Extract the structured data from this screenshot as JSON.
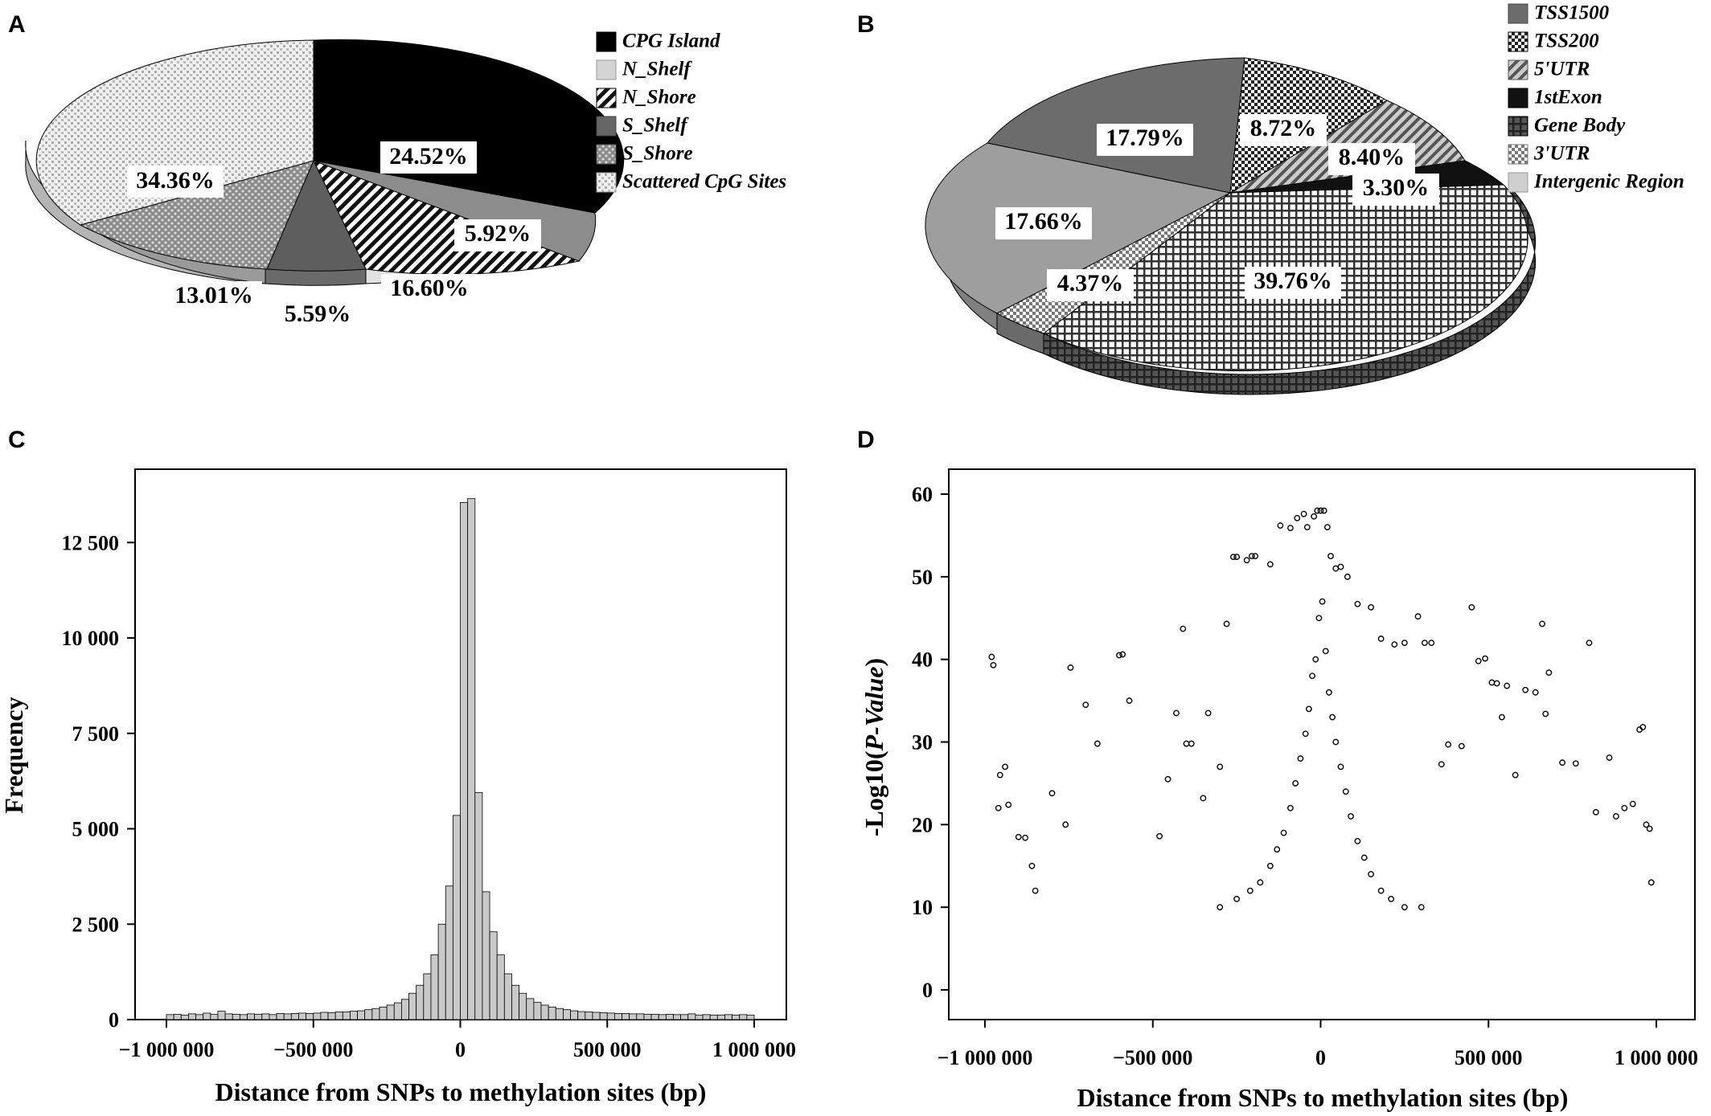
{
  "panels": {
    "a": {
      "letter": "A"
    },
    "b": {
      "letter": "B"
    },
    "c": {
      "letter": "C"
    },
    "d": {
      "letter": "D"
    }
  },
  "chart_data": [
    {
      "type": "pie",
      "slices": [
        {
          "name": "CPG Island",
          "value": 24.52,
          "label": "24.52%",
          "pattern": "solid-black"
        },
        {
          "name": "N_Shelf",
          "value": 0.0,
          "label": "",
          "pattern": "light-gray"
        },
        {
          "name": "N_Shore",
          "value": 16.6,
          "label": "16.60%",
          "pattern": "diagonal-stripes"
        },
        {
          "name": "S_Shelf",
          "value": 5.59,
          "label": "5.59%",
          "pattern": "dark-gray"
        },
        {
          "name": "S_Shore",
          "value": 13.01,
          "label": "13.01%",
          "pattern": "crosshatch"
        },
        {
          "name": "Scattered CpG Sites",
          "value": 34.36,
          "label": "34.36%",
          "pattern": "light-grid"
        }
      ],
      "extra_slice": {
        "value": 5.92,
        "label": "5.92%",
        "pattern": "medium-gray"
      },
      "legend": [
        "CPG Island",
        "N_Shelf",
        "N_Shore",
        "S_Shelf",
        "S_Shore",
        "Scattered CpG Sites"
      ],
      "legend_position": "top-right"
    },
    {
      "type": "pie",
      "slices": [
        {
          "name": "TSS1500",
          "value": 17.79,
          "label": "17.79%",
          "pattern": "dark-gray"
        },
        {
          "name": "TSS200",
          "value": 8.72,
          "label": "8.72%",
          "pattern": "checker"
        },
        {
          "name": "5'UTR",
          "value": 8.4,
          "label": "8.40%",
          "pattern": "diagonal-stripes"
        },
        {
          "name": "1stExon",
          "value": 3.3,
          "label": "3.30%",
          "pattern": "solid-black"
        },
        {
          "name": "Gene Body",
          "value": 39.76,
          "label": "39.76%",
          "pattern": "grid"
        },
        {
          "name": "3'UTR",
          "value": 4.37,
          "label": "4.37%",
          "pattern": "checker-light"
        },
        {
          "name": "Intergenic Region",
          "value": 17.66,
          "label": "17.66%",
          "pattern": "light-gray"
        }
      ],
      "legend": [
        "TSS1500",
        "TSS200",
        "5'UTR",
        "1stExon",
        "Gene Body",
        "3'UTR",
        "Intergenic Region"
      ],
      "legend_position": "top-right"
    },
    {
      "type": "bar",
      "xlabel": "Distance from SNPs to methylation sites (bp)",
      "ylabel": "Frequency",
      "xlim": [
        -1000000,
        1000000
      ],
      "ylim": [
        0,
        14000
      ],
      "xticks": [
        -1000000,
        -500000,
        0,
        500000,
        1000000
      ],
      "xtick_labels": [
        "−1 000 000",
        "−500 000",
        "0",
        "500 000",
        "1 000 000"
      ],
      "yticks": [
        0,
        2500,
        5000,
        7500,
        10000,
        12500
      ],
      "ytick_labels": [
        "0",
        "2 500",
        "5 000",
        "7 500",
        "10 000",
        "12 500"
      ],
      "bin_width": 25000,
      "bin_start": -1000000,
      "values": [
        130,
        140,
        120,
        150,
        130,
        170,
        140,
        220,
        150,
        140,
        130,
        150,
        140,
        150,
        130,
        160,
        150,
        160,
        170,
        160,
        170,
        190,
        180,
        200,
        200,
        220,
        230,
        260,
        290,
        330,
        380,
        440,
        530,
        690,
        900,
        1200,
        1700,
        2500,
        3500,
        5350,
        13550,
        13650,
        5950,
        3350,
        2300,
        1700,
        1200,
        900,
        690,
        550,
        450,
        380,
        330,
        290,
        260,
        230,
        210,
        200,
        190,
        180,
        170,
        160,
        160,
        150,
        150,
        140,
        140,
        130,
        140,
        130,
        130,
        150,
        120,
        130,
        120,
        120,
        130,
        120,
        130,
        120
      ]
    },
    {
      "type": "scatter",
      "xlabel": "Distance from SNPs to methylation sites (bp)",
      "ylabel_prefix": "-Log10(",
      "ylabel_italic": "P-Value",
      "ylabel_suffix": ")",
      "xlim": [
        -1000000,
        1000000
      ],
      "ylim": [
        0,
        60
      ],
      "xticks": [
        -1000000,
        -500000,
        0,
        500000,
        1000000
      ],
      "xtick_labels": [
        "−1 000 000",
        "−500 000",
        "0",
        "500 000",
        "1 000 000"
      ],
      "yticks": [
        0,
        10,
        20,
        30,
        40,
        50,
        60
      ],
      "ytick_labels": [
        "0",
        "10",
        "20",
        "30",
        "40",
        "50",
        "60"
      ],
      "points": [
        [
          -980000,
          40.3
        ],
        [
          -975000,
          39.3
        ],
        [
          -955000,
          26
        ],
        [
          -940000,
          27
        ],
        [
          -930000,
          22.4
        ],
        [
          -960000,
          22
        ],
        [
          -900000,
          18.5
        ],
        [
          -880000,
          18.4
        ],
        [
          -860000,
          15
        ],
        [
          -850000,
          12
        ],
        [
          -800000,
          23.8
        ],
        [
          -760000,
          20
        ],
        [
          -745000,
          39
        ],
        [
          -700000,
          34.5
        ],
        [
          -665000,
          29.8
        ],
        [
          -600000,
          40.5
        ],
        [
          -590000,
          40.6
        ],
        [
          -570000,
          35
        ],
        [
          -480000,
          18.6
        ],
        [
          -455000,
          25.5
        ],
        [
          -430000,
          33.5
        ],
        [
          -410000,
          43.7
        ],
        [
          -400000,
          29.8
        ],
        [
          -385000,
          29.8
        ],
        [
          -350000,
          23.2
        ],
        [
          -335000,
          33.5
        ],
        [
          -300000,
          27
        ],
        [
          -280000,
          44.3
        ],
        [
          -260000,
          52.4
        ],
        [
          -250000,
          52.4
        ],
        [
          -220000,
          52
        ],
        [
          -205000,
          52.5
        ],
        [
          -195000,
          52.5
        ],
        [
          -150000,
          51.5
        ],
        [
          -120000,
          56.2
        ],
        [
          -90000,
          55.9
        ],
        [
          -70000,
          57.1
        ],
        [
          -50000,
          57.6
        ],
        [
          -40000,
          56
        ],
        [
          -20000,
          57.3
        ],
        [
          -10000,
          58
        ],
        [
          0,
          58
        ],
        [
          10000,
          58
        ],
        [
          20000,
          56
        ],
        [
          30000,
          52.5
        ],
        [
          45000,
          51
        ],
        [
          60000,
          51.2
        ],
        [
          80000,
          50
        ],
        [
          110000,
          46.7
        ],
        [
          150000,
          46.3
        ],
        [
          180000,
          42.5
        ],
        [
          220000,
          41.8
        ],
        [
          250000,
          42
        ],
        [
          290000,
          45.2
        ],
        [
          310000,
          42
        ],
        [
          330000,
          42
        ],
        [
          360000,
          27.3
        ],
        [
          380000,
          29.7
        ],
        [
          420000,
          29.5
        ],
        [
          450000,
          46.3
        ],
        [
          470000,
          39.8
        ],
        [
          490000,
          40.1
        ],
        [
          510000,
          37.2
        ],
        [
          525000,
          37.1
        ],
        [
          540000,
          33
        ],
        [
          555000,
          36.8
        ],
        [
          580000,
          26
        ],
        [
          610000,
          36.3
        ],
        [
          640000,
          36
        ],
        [
          660000,
          44.3
        ],
        [
          670000,
          33.4
        ],
        [
          680000,
          38.4
        ],
        [
          720000,
          27.5
        ],
        [
          760000,
          27.4
        ],
        [
          800000,
          42
        ],
        [
          820000,
          21.5
        ],
        [
          860000,
          28.1
        ],
        [
          880000,
          21
        ],
        [
          905000,
          22
        ],
        [
          930000,
          22.5
        ],
        [
          950000,
          31.5
        ],
        [
          960000,
          31.8
        ],
        [
          970000,
          20
        ],
        [
          980000,
          19.5
        ],
        [
          985000,
          13
        ],
        [
          -5000,
          45
        ],
        [
          5000,
          47
        ],
        [
          -15000,
          40
        ],
        [
          15000,
          41
        ],
        [
          -25000,
          38
        ],
        [
          25000,
          36
        ],
        [
          -35000,
          34
        ],
        [
          35000,
          33
        ],
        [
          -45000,
          31
        ],
        [
          45000,
          30
        ],
        [
          -60000,
          28
        ],
        [
          60000,
          27
        ],
        [
          -75000,
          25
        ],
        [
          75000,
          24
        ],
        [
          -90000,
          22
        ],
        [
          90000,
          21
        ],
        [
          -110000,
          19
        ],
        [
          110000,
          18
        ],
        [
          -130000,
          17
        ],
        [
          130000,
          16
        ],
        [
          -150000,
          15
        ],
        [
          150000,
          14
        ],
        [
          -180000,
          13
        ],
        [
          180000,
          12
        ],
        [
          -210000,
          12
        ],
        [
          210000,
          11
        ],
        [
          -250000,
          11
        ],
        [
          250000,
          10
        ],
        [
          -300000,
          10
        ],
        [
          300000,
          10
        ]
      ]
    }
  ]
}
